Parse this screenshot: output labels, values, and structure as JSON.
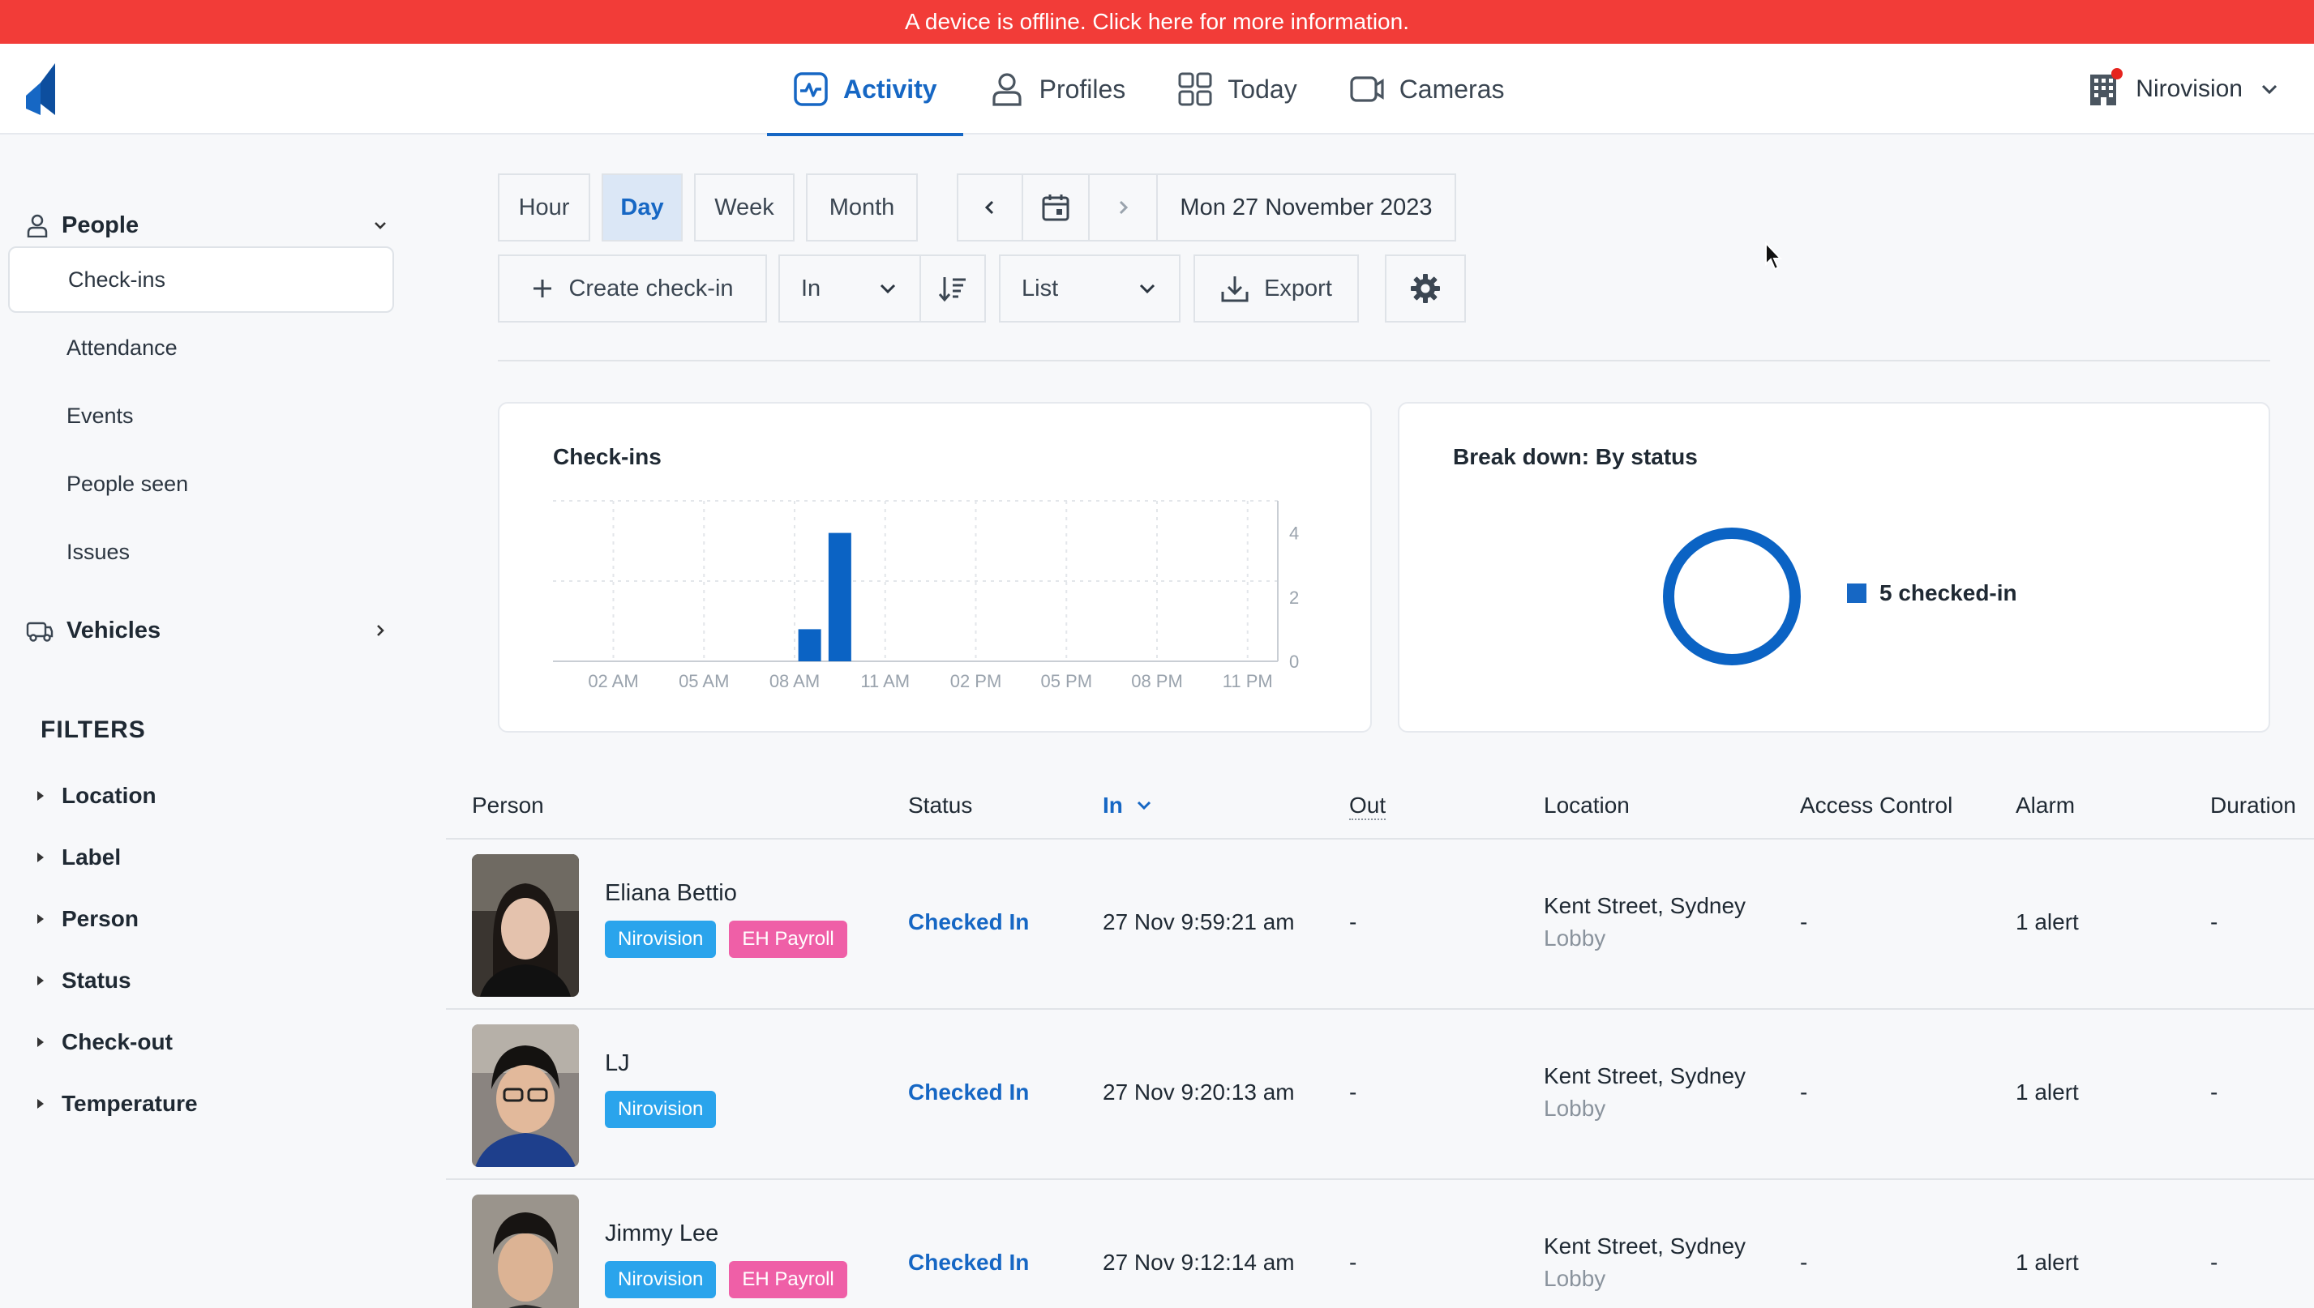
{
  "banner": {
    "text": "A device is offline. Click here for more information."
  },
  "nav": {
    "tabs": [
      {
        "label": "Activity",
        "icon": "activity-icon",
        "active": true
      },
      {
        "label": "Profiles",
        "icon": "person-icon"
      },
      {
        "label": "Today",
        "icon": "grid-icon"
      },
      {
        "label": "Cameras",
        "icon": "camera-icon"
      }
    ],
    "org": "Nirovision"
  },
  "sidebar": {
    "people": "People",
    "items": [
      "Check-ins",
      "Attendance",
      "Events",
      "People seen",
      "Issues"
    ],
    "vehicles": "Vehicles",
    "filters_title": "FILTERS",
    "filters": [
      "Location",
      "Label",
      "Person",
      "Status",
      "Check-out",
      "Temperature"
    ]
  },
  "toolbar": {
    "periods": [
      "Hour",
      "Day",
      "Week",
      "Month"
    ],
    "selected_period": "Day",
    "date": "Mon 27 November 2023",
    "create": "Create check-in",
    "direction": "In",
    "view": "List",
    "export": "Export"
  },
  "checkins_card": {
    "title": "Check-ins"
  },
  "chart_data": {
    "type": "bar",
    "title": "Check-ins",
    "x_tick_labels": [
      "02 AM",
      "05 AM",
      "08 AM",
      "11 AM",
      "02 PM",
      "05 PM",
      "08 PM",
      "11 PM"
    ],
    "y_ticks": [
      0,
      2,
      4
    ],
    "ylim": [
      0,
      5
    ],
    "bars": [
      {
        "hour": "08 AM",
        "value": 1
      },
      {
        "hour": "09 AM",
        "value": 4
      }
    ],
    "grid": true,
    "color": "#0b63c4"
  },
  "breakdown": {
    "title": "Break down: By status",
    "legend": "5 checked-in",
    "color": "#0b63c4"
  },
  "table": {
    "columns": [
      "Person",
      "Status",
      "In",
      "Out",
      "Location",
      "Access Control",
      "Alarm",
      "Duration"
    ],
    "rows": [
      {
        "name": "Eliana Bettio",
        "tags": [
          "Nirovision",
          "EH Payroll"
        ],
        "status": "Checked In",
        "in": "27 Nov 9:59:21 am",
        "out": "-",
        "loc1": "Kent Street, Sydney",
        "loc2": "Lobby",
        "access": "-",
        "alarm": "1 alert",
        "duration": "-"
      },
      {
        "name": "LJ",
        "tags": [
          "Nirovision"
        ],
        "status": "Checked In",
        "in": "27 Nov 9:20:13 am",
        "out": "-",
        "loc1": "Kent Street, Sydney",
        "loc2": "Lobby",
        "access": "-",
        "alarm": "1 alert",
        "duration": "-"
      },
      {
        "name": "Jimmy Lee",
        "tags": [
          "Nirovision",
          "EH Payroll"
        ],
        "status": "Checked In",
        "in": "27 Nov 9:12:14 am",
        "out": "-",
        "loc1": "Kent Street, Sydney",
        "loc2": "Lobby",
        "access": "-",
        "alarm": "1 alert",
        "duration": "-"
      }
    ]
  }
}
